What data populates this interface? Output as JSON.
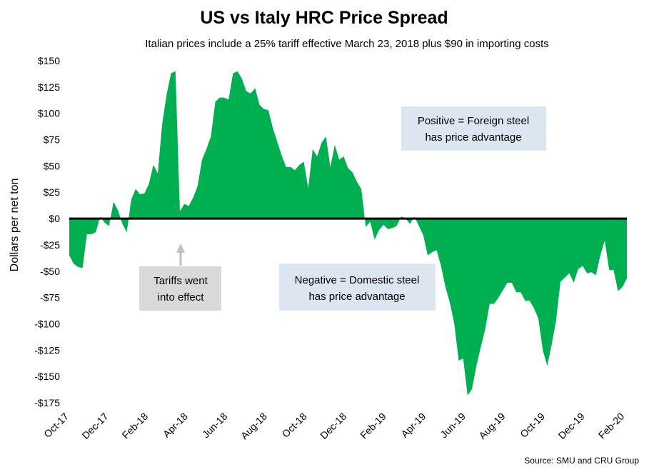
{
  "chart_data": {
    "type": "area",
    "title": "US vs Italy HRC Price Spread",
    "subtitle": "Italian prices include a 25% tariff effective March 23, 2018 plus $90 in importing costs",
    "ylabel": "Dollars per net ton",
    "xlabel": "",
    "ylim": [
      -175,
      150
    ],
    "y_ticks": [
      150,
      125,
      100,
      75,
      50,
      25,
      0,
      -25,
      -50,
      -75,
      -100,
      -125,
      -150,
      -175
    ],
    "y_tick_labels": [
      "$150",
      "$125",
      "$100",
      "$75",
      "$50",
      "$25",
      "$0",
      "-$25",
      "-$50",
      "-$75",
      "-$100",
      "-$125",
      "-$150",
      "-$175"
    ],
    "x_tick_labels": [
      "Oct-17",
      "Dec-17",
      "Feb-18",
      "Apr-18",
      "Jun-18",
      "Aug-18",
      "Oct-18",
      "Dec-18",
      "Feb-19",
      "Apr-19",
      "Jun-19",
      "Aug-19",
      "Oct-19",
      "Dec-19",
      "Feb-20"
    ],
    "fill_color": "#00b050",
    "zero_line_color": "#000000",
    "grid": false,
    "series": [
      {
        "values": [
          -35,
          -43,
          -46,
          -47,
          -15,
          -15,
          -13,
          2,
          -4,
          -7,
          16,
          8,
          -5,
          -13,
          18,
          28,
          23,
          24,
          33,
          51,
          43,
          90,
          118,
          138,
          140,
          7,
          14,
          12,
          20,
          31,
          56,
          66,
          78,
          111,
          115,
          115,
          113,
          138,
          140,
          133,
          121,
          119,
          124,
          108,
          104,
          103,
          86,
          73,
          60,
          49,
          49,
          46,
          51,
          54,
          29,
          66,
          59,
          72,
          78,
          49,
          70,
          56,
          59,
          48,
          44,
          35,
          28,
          -8,
          -3,
          -20,
          -11,
          -6,
          -10,
          -9,
          -7,
          2,
          0,
          -5,
          2,
          -7,
          -16,
          -35,
          -32,
          -30,
          -45,
          -65,
          -80,
          -100,
          -135,
          -133,
          -168,
          -162,
          -140,
          -122,
          -105,
          -81,
          -81,
          -75,
          -68,
          -61,
          -61,
          -70,
          -70,
          -78,
          -78,
          -85,
          -95,
          -125,
          -140,
          -120,
          -97,
          -60,
          -56,
          -52,
          -61,
          -48,
          -45,
          -52,
          -51,
          -54,
          -35,
          -21,
          -49,
          -49,
          -69,
          -65,
          -57
        ]
      }
    ],
    "annotations": [
      {
        "text": [
          "Positive = Foreign steel",
          "has price advantage"
        ],
        "box_color": "#dce6f1"
      },
      {
        "text": [
          "Negative = Domestic steel",
          "has price advantage"
        ],
        "box_color": "#dce6f1"
      },
      {
        "text": [
          "Tariffs went",
          "into effect"
        ],
        "box_color": "#d9d9d9",
        "arrow_color": "#bfbfbf"
      }
    ],
    "source": "Source: SMU and CRU Group"
  }
}
